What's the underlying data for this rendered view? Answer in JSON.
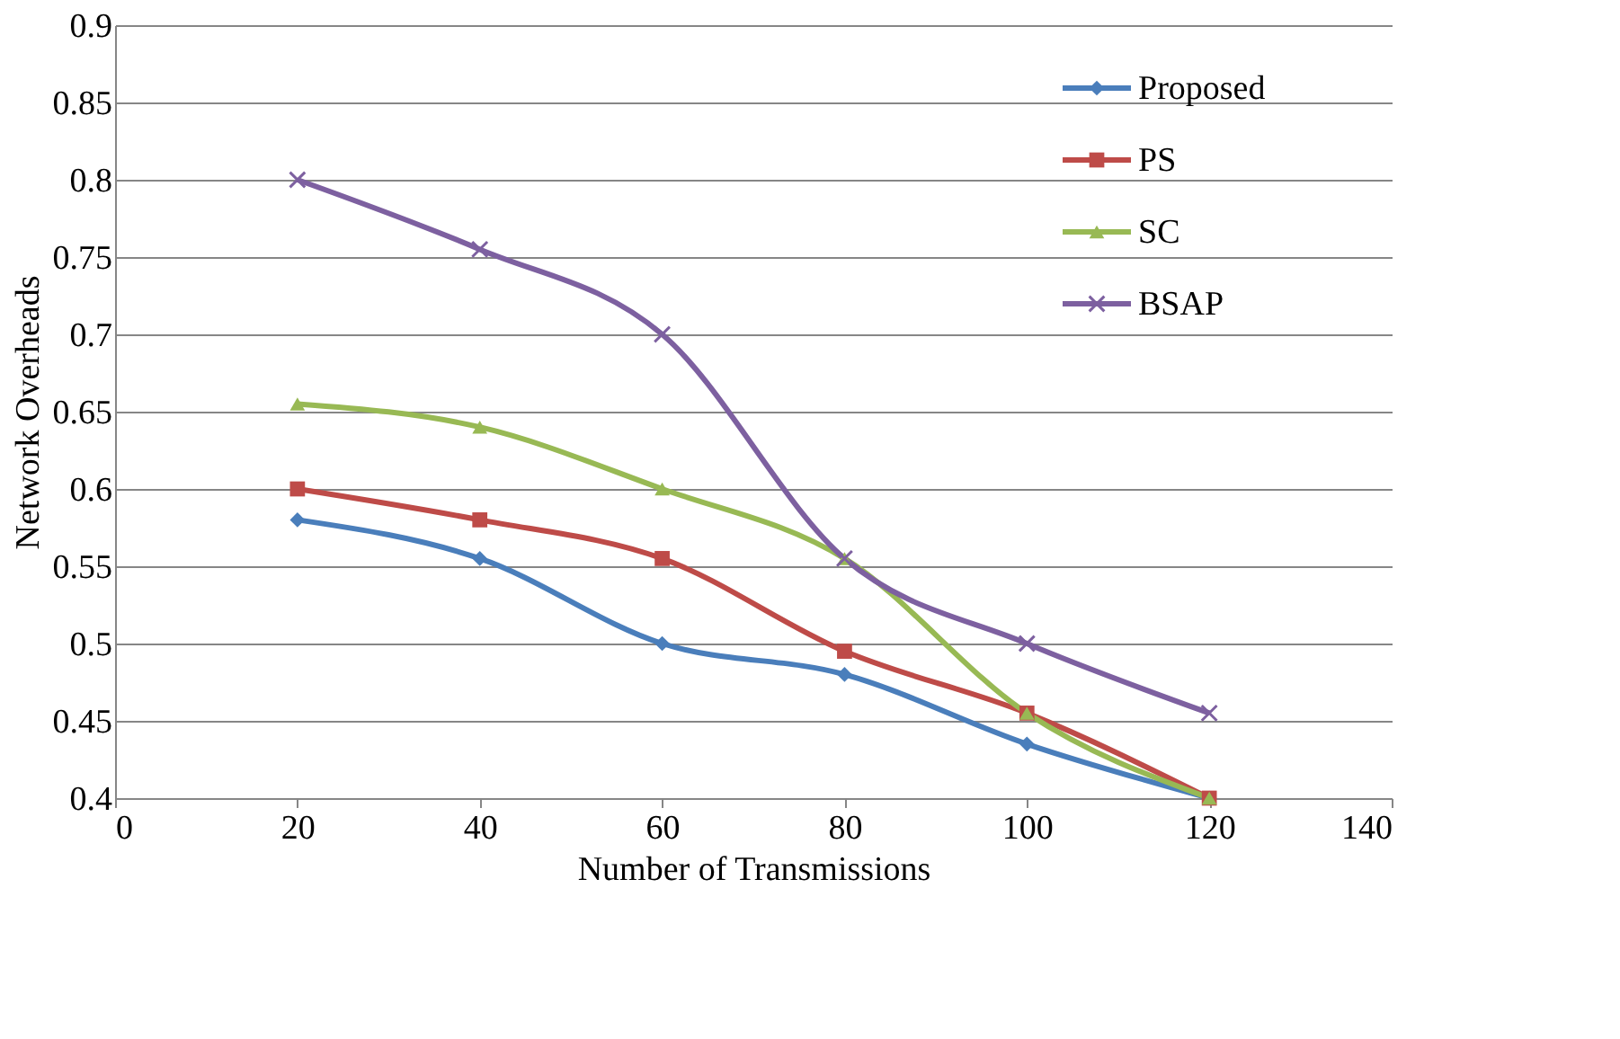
{
  "chart_data": {
    "type": "line",
    "xlabel": "Number of Transmissions",
    "ylabel": "Network Overheads",
    "x": [
      20,
      40,
      60,
      80,
      100,
      120
    ],
    "series": [
      {
        "name": "Proposed",
        "color": "#4a7ebb",
        "marker": "diamond",
        "values": [
          0.58,
          0.555,
          0.5,
          0.48,
          0.435,
          0.4
        ]
      },
      {
        "name": "PS",
        "color": "#be4b48",
        "marker": "square",
        "values": [
          0.6,
          0.58,
          0.555,
          0.495,
          0.455,
          0.4
        ]
      },
      {
        "name": "SC",
        "color": "#98b954",
        "marker": "triangle",
        "values": [
          0.655,
          0.64,
          0.6,
          0.555,
          0.455,
          0.4
        ]
      },
      {
        "name": "BSAP",
        "color": "#7d60a0",
        "marker": "cross",
        "values": [
          0.8,
          0.755,
          0.7,
          0.555,
          0.5,
          0.455
        ]
      }
    ],
    "xlim": [
      0,
      140
    ],
    "xticks": [
      0,
      20,
      40,
      60,
      80,
      100,
      120,
      140
    ],
    "ylim": [
      0.4,
      0.9
    ],
    "yticks": [
      0.4,
      0.45,
      0.5,
      0.55,
      0.6,
      0.65,
      0.7,
      0.75,
      0.8,
      0.85,
      0.9
    ],
    "grid": "y",
    "legend": "top right",
    "line_style": "solid"
  }
}
